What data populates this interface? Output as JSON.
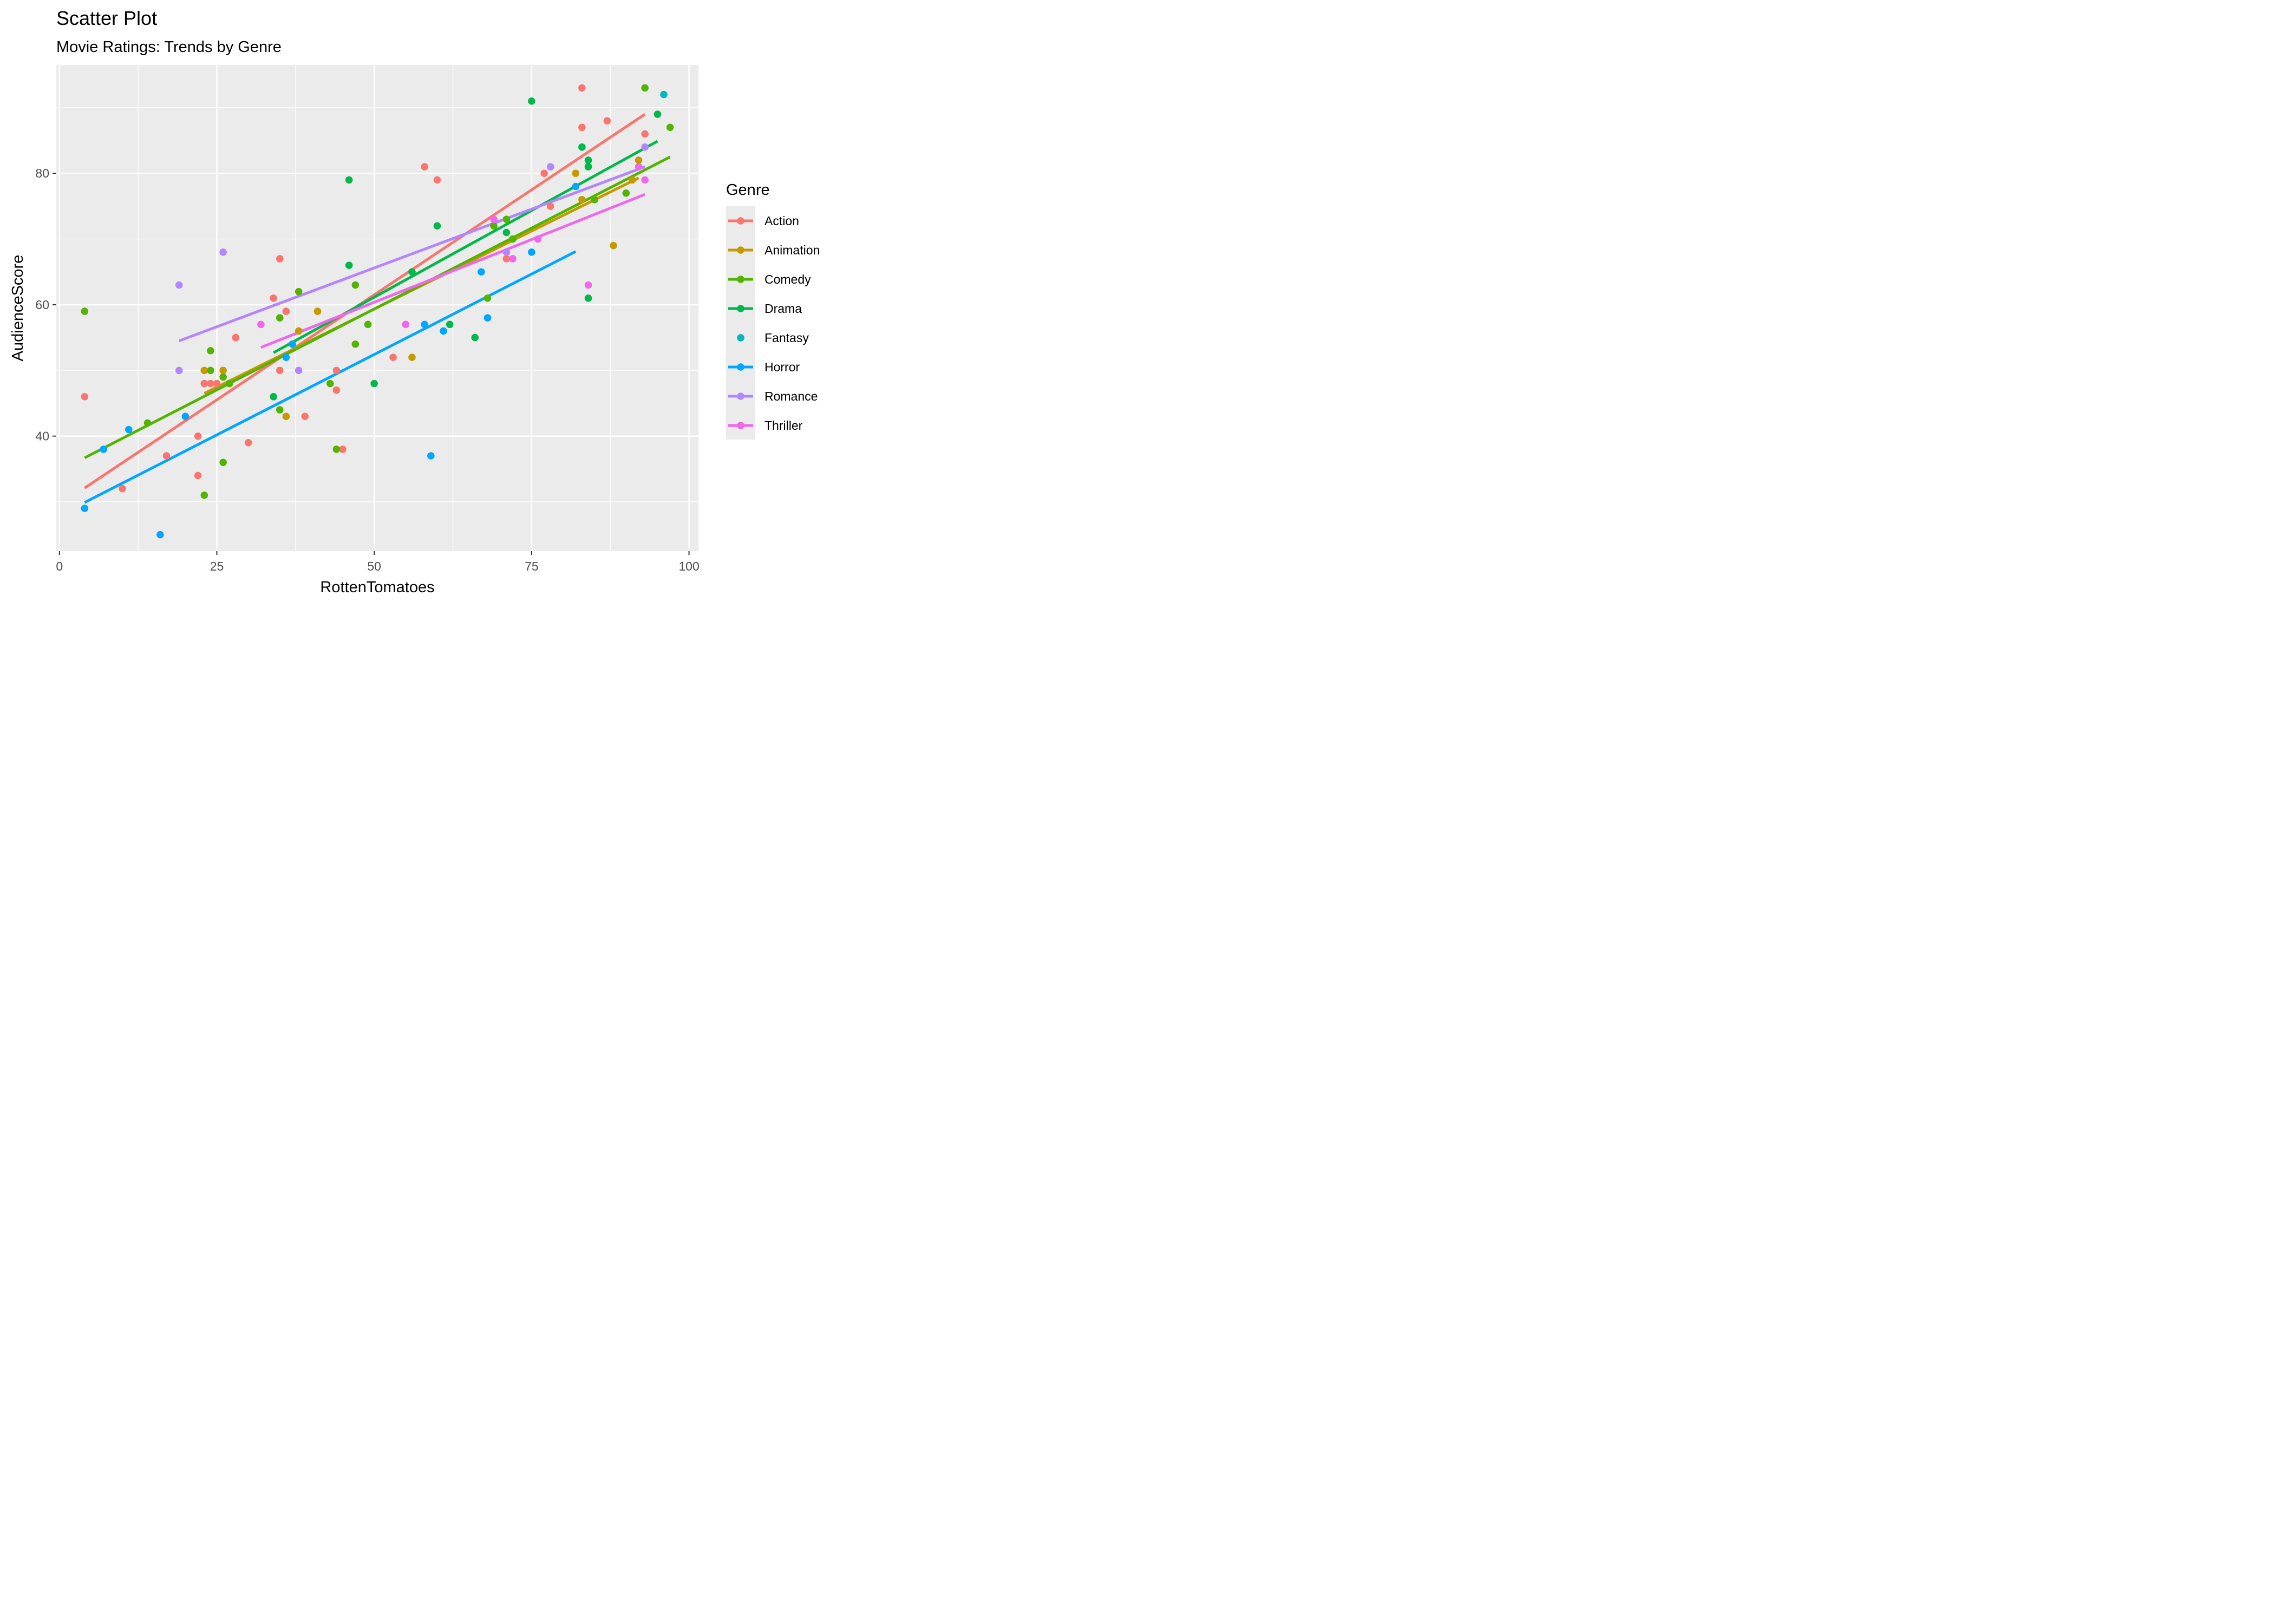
{
  "chart_data": {
    "type": "scatter",
    "title": "Scatter Plot",
    "subtitle": "Movie Ratings: Trends by Genre",
    "xlabel": "RottenTomatoes",
    "ylabel": "AudienceScore",
    "xlim": [
      -0.5,
      101.5
    ],
    "ylim": [
      22.5,
      96.5
    ],
    "xticks": [
      0,
      25,
      50,
      75,
      100
    ],
    "yticks": [
      40,
      60,
      80
    ],
    "grid": true,
    "legend": {
      "title": "Genre",
      "position": "right"
    },
    "series": [
      {
        "name": "Action",
        "color": "#F8766D",
        "points": [
          [
            4,
            46
          ],
          [
            10,
            32
          ],
          [
            17,
            37
          ],
          [
            22,
            40
          ],
          [
            22,
            34
          ],
          [
            23,
            48
          ],
          [
            24,
            48
          ],
          [
            25,
            48
          ],
          [
            28,
            55
          ],
          [
            30,
            39
          ],
          [
            34,
            61
          ],
          [
            35,
            67
          ],
          [
            35,
            50
          ],
          [
            36,
            59
          ],
          [
            39,
            43
          ],
          [
            44,
            50
          ],
          [
            44,
            47
          ],
          [
            45,
            38
          ],
          [
            53,
            52
          ],
          [
            58,
            81
          ],
          [
            60,
            79
          ],
          [
            71,
            67
          ],
          [
            77,
            80
          ],
          [
            78,
            75
          ],
          [
            83,
            93
          ],
          [
            83,
            87
          ],
          [
            87,
            88
          ],
          [
            93,
            86
          ]
        ],
        "trend": [
          [
            4,
            32.1
          ],
          [
            93,
            89
          ]
        ]
      },
      {
        "name": "Animation",
        "color": "#C49A00",
        "points": [
          [
            23,
            50
          ],
          [
            26,
            50
          ],
          [
            36,
            43
          ],
          [
            38,
            56
          ],
          [
            41,
            59
          ],
          [
            56,
            52
          ],
          [
            82,
            80
          ],
          [
            83,
            76
          ],
          [
            88,
            69
          ],
          [
            91,
            79
          ],
          [
            92,
            82
          ]
        ],
        "trend": [
          [
            23,
            46.5
          ],
          [
            92,
            79.3
          ]
        ]
      },
      {
        "name": "Comedy",
        "color": "#53B400",
        "points": [
          [
            4,
            59
          ],
          [
            14,
            42
          ],
          [
            23,
            31
          ],
          [
            24,
            53
          ],
          [
            24,
            50
          ],
          [
            26,
            49
          ],
          [
            26,
            36
          ],
          [
            27,
            48
          ],
          [
            35,
            44
          ],
          [
            35,
            58
          ],
          [
            38,
            62
          ],
          [
            43,
            48
          ],
          [
            44,
            38
          ],
          [
            47,
            63
          ],
          [
            47,
            54
          ],
          [
            49,
            57
          ],
          [
            68,
            61
          ],
          [
            69,
            72
          ],
          [
            71,
            73
          ],
          [
            72,
            70
          ],
          [
            85,
            76
          ],
          [
            90,
            77
          ],
          [
            93,
            93
          ],
          [
            97,
            87
          ]
        ],
        "trend": [
          [
            4,
            36.7
          ],
          [
            97,
            82.5
          ]
        ]
      },
      {
        "name": "Drama",
        "color": "#00B84A",
        "points": [
          [
            34,
            46
          ],
          [
            46,
            79
          ],
          [
            46,
            66
          ],
          [
            50,
            48
          ],
          [
            56,
            65
          ],
          [
            60,
            72
          ],
          [
            62,
            57
          ],
          [
            66,
            55
          ],
          [
            71,
            71
          ],
          [
            75,
            91
          ],
          [
            83,
            84
          ],
          [
            84,
            82
          ],
          [
            84,
            81
          ],
          [
            84,
            61
          ],
          [
            95,
            89
          ]
        ],
        "trend": [
          [
            34,
            52.7
          ],
          [
            95,
            84.9
          ]
        ]
      },
      {
        "name": "Fantasy",
        "color": "#00B6C1",
        "points": [
          [
            96,
            92
          ]
        ],
        "trend": null
      },
      {
        "name": "Horror",
        "color": "#00A6FF",
        "points": [
          [
            4,
            29
          ],
          [
            7,
            38
          ],
          [
            11,
            41
          ],
          [
            16,
            25
          ],
          [
            20,
            43
          ],
          [
            36,
            52
          ],
          [
            37,
            54
          ],
          [
            58,
            57
          ],
          [
            59,
            37
          ],
          [
            61,
            56
          ],
          [
            67,
            65
          ],
          [
            68,
            58
          ],
          [
            75,
            68
          ],
          [
            82,
            78
          ]
        ],
        "trend": [
          [
            4,
            29.9
          ],
          [
            82,
            68.1
          ]
        ]
      },
      {
        "name": "Romance",
        "color": "#B385FF",
        "points": [
          [
            19,
            63
          ],
          [
            19,
            50
          ],
          [
            26,
            68
          ],
          [
            38,
            50
          ],
          [
            71,
            68
          ],
          [
            78,
            81
          ],
          [
            93,
            84
          ]
        ],
        "trend": [
          [
            19,
            54.5
          ],
          [
            93,
            81
          ]
        ]
      },
      {
        "name": "Thriller",
        "color": "#EF67EB",
        "points": [
          [
            32,
            57
          ],
          [
            55,
            57
          ],
          [
            69,
            73
          ],
          [
            72,
            67
          ],
          [
            76,
            70
          ],
          [
            84,
            63
          ],
          [
            92,
            81
          ],
          [
            93,
            79
          ]
        ],
        "trend": [
          [
            32,
            53.5
          ],
          [
            93,
            76.8
          ]
        ]
      }
    ]
  }
}
